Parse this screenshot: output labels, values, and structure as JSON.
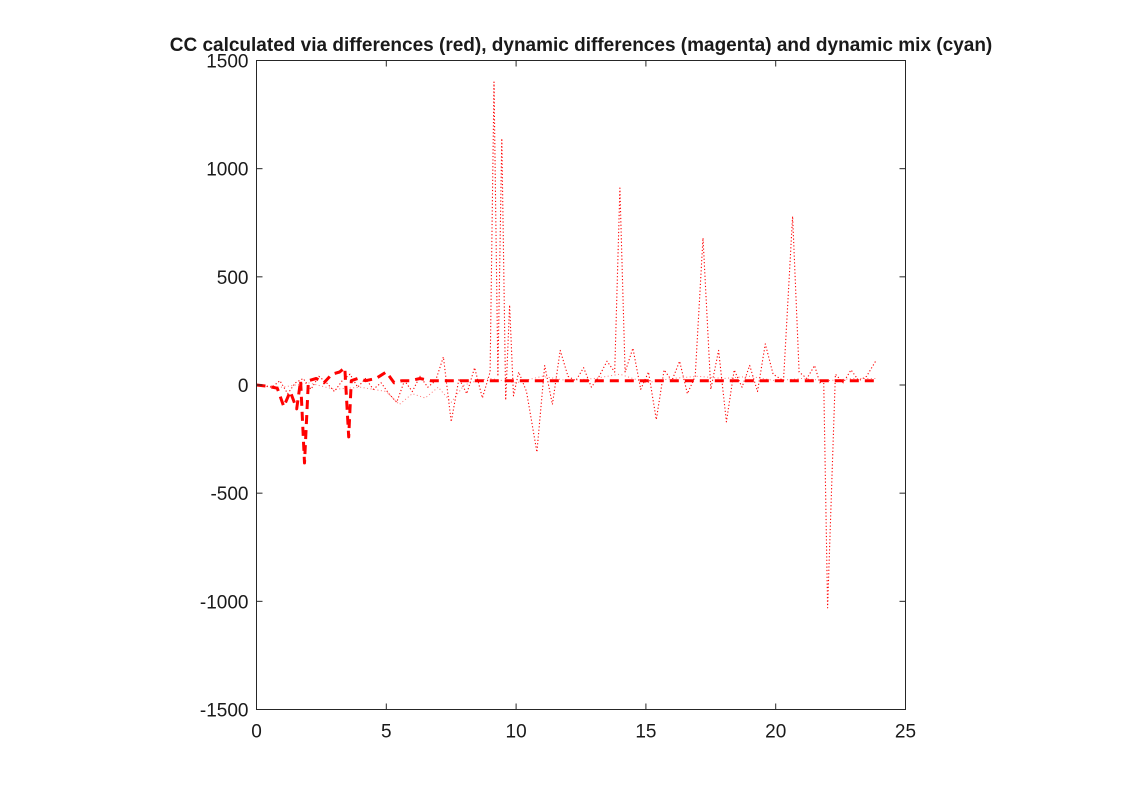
{
  "chart_data": {
    "type": "line",
    "title": "CC calculated via differences (red), dynamic differences (magenta) and dynamic mix (cyan)",
    "xlabel": "",
    "ylabel": "",
    "xlim": [
      0,
      25
    ],
    "ylim": [
      -1500,
      1500
    ],
    "grid": false,
    "x_ticks": [
      0,
      5,
      10,
      15,
      20,
      25
    ],
    "y_ticks": [
      -1500,
      -1000,
      -500,
      0,
      500,
      1000,
      1500
    ],
    "x_tick_labels": [
      "0",
      "5",
      "10",
      "15",
      "20",
      "25"
    ],
    "y_tick_labels": [
      "-1500",
      "-1000",
      "-500",
      "0",
      "500",
      "1000",
      "1500"
    ],
    "series": [
      {
        "color": "#ff0000",
        "line_style": "dotted",
        "x": [
          0,
          0.3,
          0.6,
          0.9,
          1.2,
          1.5,
          1.8,
          2.1,
          2.4,
          2.7,
          3.0,
          3.3,
          3.6,
          3.9,
          4.2,
          4.5,
          4.8,
          5.1,
          5.4,
          5.7,
          6.0,
          6.3,
          6.6,
          6.9,
          7.2,
          7.5,
          7.8,
          8.1,
          8.4,
          8.7,
          9.0,
          9.15,
          9.3,
          9.45,
          9.6,
          9.75,
          9.9,
          10.1,
          10.4,
          10.8,
          11.1,
          11.4,
          11.7,
          12.0,
          12.3,
          12.6,
          12.9,
          13.2,
          13.5,
          13.8,
          14.0,
          14.2,
          14.5,
          14.8,
          15.1,
          15.4,
          15.7,
          16.0,
          16.3,
          16.6,
          16.9,
          17.2,
          17.5,
          17.8,
          18.1,
          18.4,
          18.7,
          19.0,
          19.3,
          19.6,
          19.9,
          20.3,
          20.65,
          20.9,
          21.2,
          21.5,
          21.7,
          21.85,
          22.0,
          22.3,
          22.6,
          22.9,
          23.2,
          23.5,
          23.85
        ],
        "y": [
          0,
          -5,
          -10,
          20,
          -40,
          10,
          30,
          -20,
          40,
          10,
          -30,
          20,
          50,
          -10,
          30,
          -20,
          10,
          -40,
          -80,
          20,
          -30,
          40,
          -10,
          20,
          130,
          -170,
          30,
          -40,
          80,
          -60,
          60,
          1400,
          40,
          1140,
          -70,
          370,
          -50,
          60,
          -30,
          -310,
          90,
          -90,
          160,
          40,
          20,
          80,
          -10,
          40,
          110,
          60,
          910,
          60,
          170,
          -20,
          60,
          -160,
          70,
          20,
          110,
          -40,
          40,
          680,
          -20,
          160,
          -170,
          70,
          -10,
          90,
          -30,
          190,
          50,
          20,
          780,
          60,
          30,
          90,
          10,
          20,
          -1030,
          50,
          10,
          70,
          20,
          40,
          110
        ]
      },
      {
        "color": "#ff0000",
        "line_style": "dashed",
        "x": [
          0,
          0.4,
          0.8,
          1.05,
          1.3,
          1.55,
          1.7,
          1.85,
          2.0,
          2.3,
          2.6,
          2.9,
          3.2,
          3.4,
          3.55,
          3.65,
          3.9,
          4.2,
          4.6,
          5.0,
          5.3,
          5.6,
          5.9,
          6.3,
          6.7,
          7.1,
          8.0,
          9.0,
          10.0,
          11.0,
          12.0,
          13.0,
          14.0,
          15.0,
          16.0,
          17.0,
          18.0,
          19.0,
          20.0,
          21.0,
          21.8,
          22.5,
          23.0,
          23.5,
          23.85
        ],
        "y": [
          0,
          -5,
          -15,
          -100,
          -30,
          -110,
          20,
          -360,
          20,
          30,
          10,
          50,
          60,
          80,
          -240,
          20,
          30,
          20,
          30,
          60,
          10,
          20,
          20,
          30,
          20,
          20,
          20,
          20,
          20,
          20,
          20,
          20,
          20,
          20,
          20,
          20,
          20,
          20,
          20,
          20,
          20,
          20,
          20,
          20,
          20
        ]
      },
      {
        "color": "#ff0000",
        "line_style": "dotted-light",
        "x": [
          0,
          1.0,
          2.0,
          3.0,
          4.0,
          5.0,
          5.5,
          6.0,
          6.5,
          7.0,
          7.5,
          8.0,
          8.5,
          9.0,
          10.0,
          11.0,
          12.0,
          13.0,
          14.0,
          15.0,
          16.0,
          17.0,
          18.0,
          19.0,
          20.0,
          21.0,
          22.0,
          23.0,
          23.85
        ],
        "y": [
          0,
          -10,
          10,
          -20,
          -10,
          -30,
          -90,
          -40,
          -60,
          -10,
          -80,
          0,
          20,
          30,
          10,
          40,
          20,
          30,
          50,
          10,
          30,
          40,
          30,
          40,
          20,
          30,
          20,
          30,
          30
        ]
      }
    ]
  }
}
